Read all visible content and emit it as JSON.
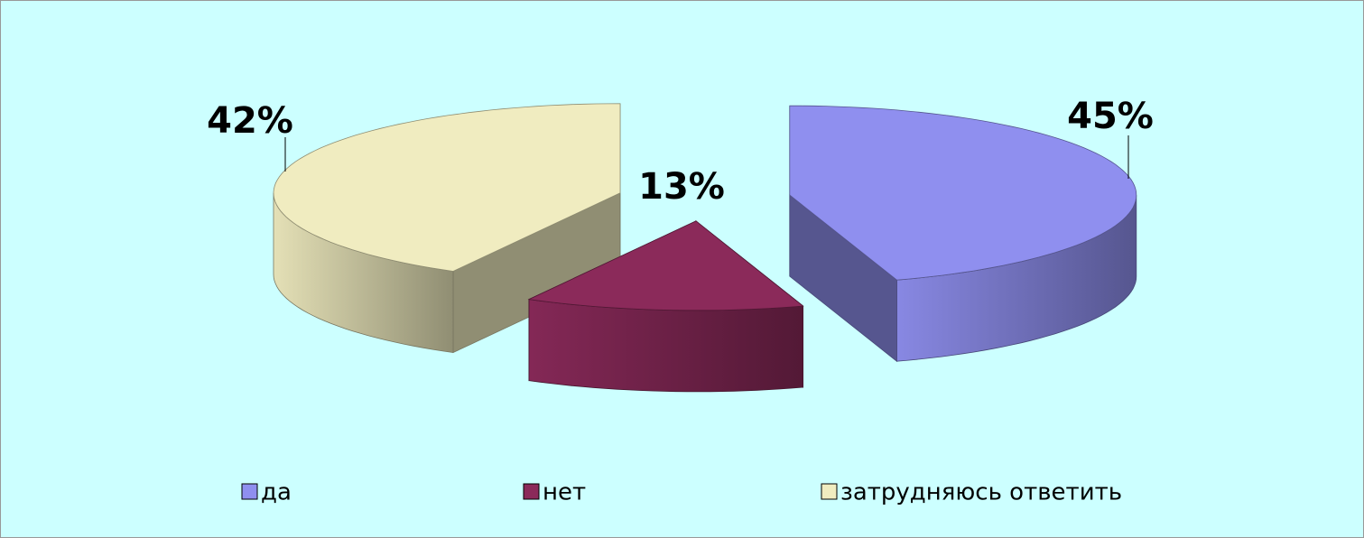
{
  "chart_data": {
    "type": "pie3d",
    "categories": [
      "да",
      "нет",
      "затрудняюсь ответить"
    ],
    "values": [
      45,
      13,
      42
    ],
    "value_labels": [
      "45%",
      "13%",
      "42%"
    ],
    "colors": [
      "#8f8fef",
      "#8b2a5a",
      "#f0ecc0"
    ],
    "legend": "bottom"
  }
}
